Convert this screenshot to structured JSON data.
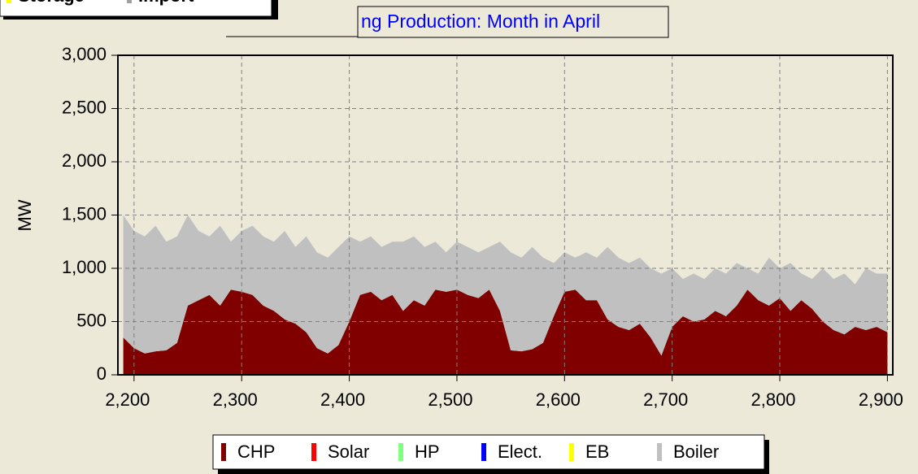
{
  "chart_data": {
    "type": "stacked_area",
    "title": "ng Production: Month in April",
    "ylabel": "MW",
    "top_legend": [
      {
        "name": "Storage",
        "color": "#ffff00"
      },
      {
        "name": "Import",
        "color": "#a0a0a0"
      }
    ],
    "x": [
      2190,
      2200,
      2210,
      2220,
      2230,
      2240,
      2250,
      2260,
      2270,
      2280,
      2290,
      2300,
      2310,
      2320,
      2330,
      2340,
      2350,
      2360,
      2370,
      2380,
      2390,
      2400,
      2410,
      2420,
      2430,
      2440,
      2450,
      2460,
      2470,
      2480,
      2490,
      2500,
      2510,
      2520,
      2530,
      2540,
      2550,
      2560,
      2570,
      2580,
      2590,
      2600,
      2610,
      2620,
      2630,
      2640,
      2650,
      2660,
      2670,
      2680,
      2690,
      2700,
      2710,
      2720,
      2730,
      2740,
      2750,
      2760,
      2770,
      2780,
      2790,
      2800,
      2810,
      2820,
      2830,
      2840,
      2850,
      2860,
      2870,
      2880,
      2890,
      2900
    ],
    "series": [
      {
        "name": "CHP",
        "color": "#800000",
        "values": [
          350,
          250,
          200,
          220,
          230,
          300,
          650,
          700,
          750,
          650,
          800,
          780,
          750,
          650,
          600,
          520,
          480,
          400,
          250,
          200,
          280,
          500,
          750,
          780,
          700,
          750,
          600,
          700,
          650,
          800,
          780,
          800,
          750,
          720,
          800,
          600,
          230,
          220,
          240,
          300,
          550,
          780,
          800,
          700,
          700,
          520,
          450,
          420,
          480,
          350,
          180,
          450,
          550,
          500,
          520,
          600,
          550,
          650,
          800,
          700,
          650,
          720,
          600,
          700,
          620,
          500,
          420,
          380,
          450,
          420,
          450,
          400
        ]
      },
      {
        "name": "Solar",
        "color": "#ff0000",
        "values": [
          0,
          0,
          0,
          0,
          0,
          0,
          0,
          0,
          0,
          0,
          0,
          0,
          0,
          0,
          0,
          0,
          0,
          0,
          0,
          0,
          0,
          0,
          0,
          0,
          0,
          0,
          0,
          0,
          0,
          0,
          0,
          0,
          0,
          0,
          0,
          0,
          0,
          0,
          0,
          0,
          0,
          0,
          0,
          0,
          0,
          0,
          0,
          0,
          0,
          0,
          0,
          0,
          0,
          0,
          0,
          0,
          0,
          0,
          0,
          0,
          0,
          0,
          0,
          0,
          0,
          0,
          0,
          0,
          0,
          0,
          0,
          0
        ]
      },
      {
        "name": "HP",
        "color": "#80ff80",
        "values": [
          0,
          0,
          0,
          0,
          0,
          0,
          0,
          0,
          0,
          0,
          0,
          0,
          0,
          0,
          0,
          0,
          0,
          0,
          0,
          0,
          0,
          0,
          0,
          0,
          0,
          0,
          0,
          0,
          0,
          0,
          0,
          0,
          0,
          0,
          0,
          0,
          0,
          0,
          0,
          0,
          0,
          0,
          0,
          0,
          0,
          0,
          0,
          0,
          0,
          0,
          0,
          0,
          0,
          0,
          0,
          0,
          0,
          0,
          0,
          0,
          0,
          0,
          0,
          0,
          0,
          0,
          0,
          0,
          0,
          0,
          0,
          0
        ]
      },
      {
        "name": "Elect.",
        "color": "#0000ff",
        "values": [
          0,
          0,
          0,
          0,
          0,
          0,
          0,
          0,
          0,
          0,
          0,
          0,
          0,
          0,
          0,
          0,
          0,
          0,
          0,
          0,
          0,
          0,
          0,
          0,
          0,
          0,
          0,
          0,
          0,
          0,
          0,
          0,
          0,
          0,
          0,
          0,
          0,
          0,
          0,
          0,
          0,
          0,
          0,
          0,
          0,
          0,
          0,
          0,
          0,
          0,
          0,
          0,
          0,
          0,
          0,
          0,
          0,
          0,
          0,
          0,
          0,
          0,
          0,
          0,
          0,
          0,
          0,
          0,
          0,
          0,
          0,
          0
        ]
      },
      {
        "name": "EB",
        "color": "#ffff00",
        "values": [
          0,
          0,
          0,
          0,
          0,
          0,
          0,
          0,
          0,
          0,
          0,
          0,
          0,
          0,
          0,
          0,
          0,
          0,
          0,
          0,
          0,
          0,
          0,
          0,
          0,
          0,
          0,
          0,
          0,
          0,
          0,
          0,
          0,
          0,
          0,
          0,
          0,
          0,
          0,
          0,
          0,
          0,
          0,
          0,
          0,
          0,
          0,
          0,
          0,
          0,
          0,
          0,
          0,
          0,
          0,
          0,
          0,
          0,
          0,
          0,
          0,
          0,
          0,
          0,
          0,
          0,
          0,
          0,
          0,
          0,
          0,
          0
        ]
      },
      {
        "name": "Boiler",
        "color": "#c0c0c0",
        "values": [
          1150,
          1100,
          1100,
          1180,
          1020,
          1000,
          850,
          650,
          550,
          750,
          450,
          570,
          650,
          650,
          650,
          830,
          720,
          900,
          900,
          900,
          920,
          800,
          500,
          520,
          500,
          500,
          650,
          600,
          550,
          450,
          370,
          450,
          450,
          430,
          400,
          650,
          920,
          880,
          960,
          800,
          500,
          370,
          300,
          450,
          400,
          680,
          650,
          630,
          620,
          650,
          770,
          550,
          350,
          450,
          380,
          400,
          400,
          400,
          200,
          250,
          450,
          280,
          450,
          250,
          280,
          500,
          480,
          570,
          400,
          580,
          500,
          550
        ]
      }
    ],
    "xlim": [
      2185,
      2905
    ],
    "xticks": [
      {
        "value": 2200,
        "label": "2,200"
      },
      {
        "value": 2300,
        "label": "2,300"
      },
      {
        "value": 2400,
        "label": "2,400"
      },
      {
        "value": 2500,
        "label": "2,500"
      },
      {
        "value": 2600,
        "label": "2,600"
      },
      {
        "value": 2700,
        "label": "2,700"
      },
      {
        "value": 2800,
        "label": "2,800"
      },
      {
        "value": 2900,
        "label": "2,900"
      }
    ],
    "ylim": [
      0,
      3000
    ],
    "yticks": [
      0,
      500,
      {
        "value": 1000,
        "label": "1,000"
      },
      {
        "value": 1500,
        "label": "1,500"
      },
      {
        "value": 2000,
        "label": "2,000"
      },
      {
        "value": 2500,
        "label": "2,500"
      },
      {
        "value": 3000,
        "label": "3,000"
      }
    ],
    "grid": true
  }
}
